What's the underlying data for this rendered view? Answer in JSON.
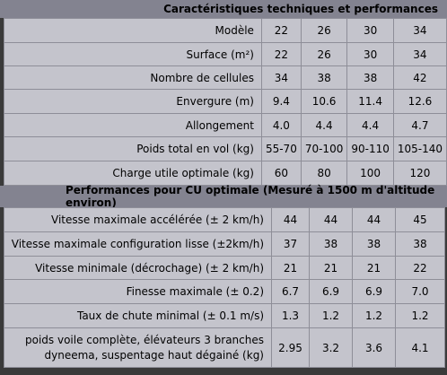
{
  "section1": {
    "title": "Caractéristiques techniques et performances",
    "rows": [
      {
        "label": "Modèle",
        "values": [
          "22",
          "26",
          "30",
          "34"
        ]
      },
      {
        "label": "Surface (m²)",
        "values": [
          "22",
          "26",
          "30",
          "34"
        ]
      },
      {
        "label": "Nombre de cellules",
        "values": [
          "34",
          "38",
          "38",
          "42"
        ]
      },
      {
        "label": "Envergure (m)",
        "values": [
          "9.4",
          "10.6",
          "11.4",
          "12.6"
        ]
      },
      {
        "label": "Allongement",
        "values": [
          "4.0",
          "4.4",
          "4.4",
          "4.7"
        ]
      },
      {
        "label": "Poids total en vol (kg)",
        "values": [
          "55-70",
          "70-100",
          "90-110",
          "105-140"
        ]
      },
      {
        "label": "Charge utile optimale (kg)",
        "values": [
          "60",
          "80",
          "100",
          "120"
        ]
      }
    ]
  },
  "section2": {
    "title": "Performances pour CU optimale (Mesuré à 1500 m d'altitude environ)",
    "rows": [
      {
        "label": "Vitesse maximale accélérée (± 2 km/h)",
        "values": [
          "44",
          "44",
          "44",
          "45"
        ]
      },
      {
        "label": "Vitesse maximale configuration lisse (±2km/h)",
        "values": [
          "37",
          "38",
          "38",
          "38"
        ]
      },
      {
        "label": "Vitesse minimale (décrochage) (± 2 km/h)",
        "values": [
          "21",
          "21",
          "21",
          "22"
        ]
      },
      {
        "label": "Finesse maximale (± 0.2)",
        "values": [
          "6.7",
          "6.9",
          "6.9",
          "7.0"
        ]
      },
      {
        "label": "Taux de chute minimal (± 0.1 m/s)",
        "values": [
          "1.3",
          "1.2",
          "1.2",
          "1.2"
        ]
      },
      {
        "label": "poids voile complète, élévateurs 3 branches dyneema, suspentage haut dégainé (kg)",
        "values": [
          "2.95",
          "3.2",
          "3.6",
          "4.1"
        ]
      }
    ]
  }
}
